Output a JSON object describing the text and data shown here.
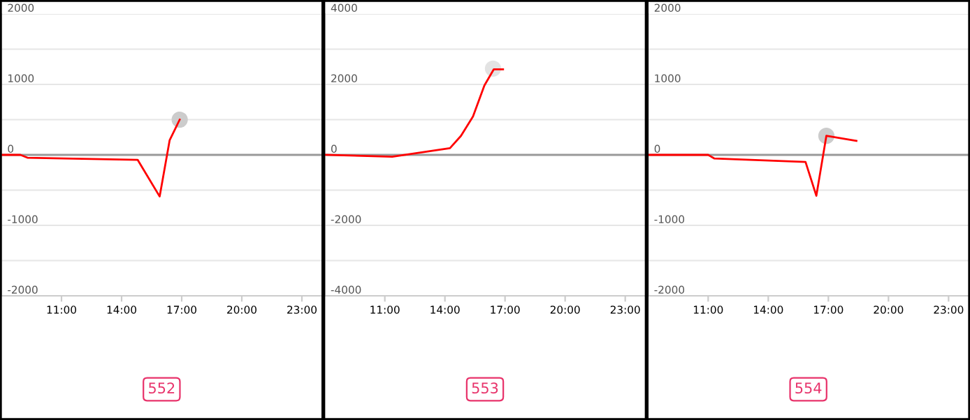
{
  "chart_data": [
    {
      "type": "line",
      "title": "552",
      "xlim": [
        8,
        24
      ],
      "xticks": [
        {
          "value": 11,
          "label": "11:00"
        },
        {
          "value": 14,
          "label": "14:00"
        },
        {
          "value": 17,
          "label": "17:00"
        },
        {
          "value": 20,
          "label": "20:00"
        },
        {
          "value": 23,
          "label": "23:00"
        }
      ],
      "ylim": [
        -2000,
        2000
      ],
      "yticks": [
        {
          "value": -2000,
          "label": "-2000"
        },
        {
          "value": -1500,
          "label": null
        },
        {
          "value": -1000,
          "label": "-1000"
        },
        {
          "value": -500,
          "label": null
        },
        0,
        {
          "value": 500,
          "label": null
        },
        1000,
        {
          "value": 1500,
          "label": null
        },
        2000
      ],
      "grid": "y",
      "marker": "none",
      "ref_lines": [
        {
          "axis": "y",
          "value": 0,
          "color": "#999999"
        }
      ],
      "series": [
        {
          "color": "#ff0000",
          "x": [
            8.03,
            8.95,
            9.3,
            14.8,
            15.9,
            16.4,
            16.9
          ],
          "values": [
            0,
            0,
            -40,
            -70,
            -590,
            210,
            500
          ]
        },
        {
          "type": "scatter",
          "marker": "circle",
          "color": "#cccccc",
          "x": [
            16.9
          ],
          "values": [
            500
          ]
        }
      ]
    },
    {
      "type": "line",
      "title": "553",
      "xlim": [
        8,
        24
      ],
      "xticks": [
        {
          "value": 11,
          "label": "11:00"
        },
        {
          "value": 14,
          "label": "14:00"
        },
        {
          "value": 17,
          "label": "17:00"
        },
        {
          "value": 20,
          "label": "20:00"
        },
        {
          "value": 23,
          "label": "23:00"
        }
      ],
      "ylim": [
        -4000,
        4000
      ],
      "yticks": [
        {
          "value": -4000,
          "label": "-4000"
        },
        {
          "value": -3000,
          "label": null
        },
        {
          "value": -2000,
          "label": "-2000"
        },
        {
          "value": -1000,
          "label": null
        },
        0,
        {
          "value": 1000,
          "label": null
        },
        2000,
        {
          "value": 3000,
          "label": null
        },
        4000
      ],
      "grid": "y",
      "marker": "none",
      "ref_lines": [
        {
          "axis": "y",
          "value": 0,
          "color": "#999999"
        }
      ],
      "series": [
        {
          "color": "#ff0000",
          "x": [
            8.03,
            11.37,
            14.25,
            14.8,
            15.4,
            15.97,
            16.44,
            16.9
          ],
          "values": [
            0,
            -50,
            190,
            540,
            1090,
            1970,
            2430,
            2430
          ]
        },
        {
          "type": "scatter",
          "marker": "circle",
          "color": "#e3e3e3",
          "x": [
            16.4
          ],
          "values": [
            2450
          ]
        }
      ]
    },
    {
      "type": "line",
      "title": "554",
      "xlim": [
        8,
        24
      ],
      "xticks": [
        {
          "value": 11,
          "label": "11:00"
        },
        {
          "value": 14,
          "label": "14:00"
        },
        {
          "value": 17,
          "label": "17:00"
        },
        {
          "value": 20,
          "label": "20:00"
        },
        {
          "value": 23,
          "label": "23:00"
        }
      ],
      "ylim": [
        -2000,
        2000
      ],
      "yticks": [
        {
          "value": -2000,
          "label": "-2000"
        },
        {
          "value": -1500,
          "label": null
        },
        {
          "value": -1000,
          "label": "-1000"
        },
        {
          "value": -500,
          "label": null
        },
        0,
        {
          "value": 500,
          "label": null
        },
        1000,
        {
          "value": 1500,
          "label": null
        },
        2000
      ],
      "grid": "y",
      "marker": "none",
      "ref_lines": [
        {
          "axis": "y",
          "value": 0,
          "color": "#999999"
        }
      ],
      "series": [
        {
          "color": "#ff0000",
          "x": [
            8.03,
            11.0,
            11.3,
            15.86,
            16.4,
            16.9,
            18.4
          ],
          "values": [
            0,
            0,
            -50,
            -100,
            -580,
            270,
            200
          ]
        },
        {
          "type": "scatter",
          "marker": "circle",
          "color": "#cccccc",
          "x": [
            16.9
          ],
          "values": [
            270
          ]
        }
      ]
    }
  ]
}
